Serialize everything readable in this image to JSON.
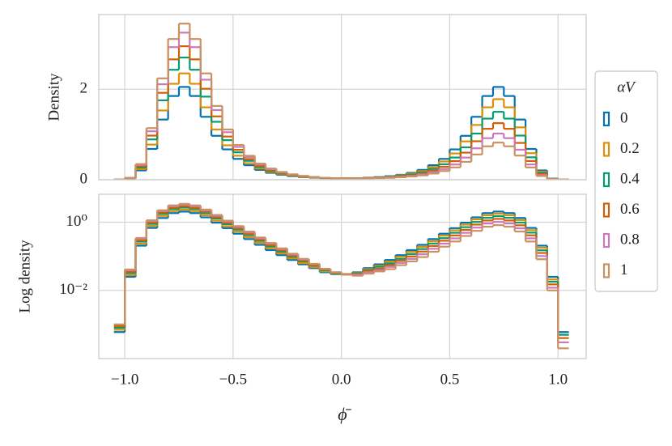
{
  "chart_data": {
    "type": "histogram",
    "xlabel": "ϕ̄",
    "bins": [
      -1.05,
      -1.0,
      -0.95,
      -0.9,
      -0.85,
      -0.8,
      -0.75,
      -0.7,
      -0.65,
      -0.6,
      -0.55,
      -0.5,
      -0.45,
      -0.4,
      -0.35,
      -0.3,
      -0.25,
      -0.2,
      -0.15,
      -0.1,
      -0.05,
      0,
      0.05,
      0.1,
      0.15,
      0.2,
      0.25,
      0.3,
      0.35,
      0.4,
      0.45,
      0.5,
      0.55,
      0.6,
      0.65,
      0.7,
      0.75,
      0.8,
      0.85,
      0.9,
      0.95,
      1.0,
      1.05
    ],
    "xlim": [
      -1.12,
      1.13
    ],
    "xticks": [
      {
        "value": -1,
        "label": "−1.0"
      },
      {
        "value": -0.5,
        "label": "−0.5"
      },
      {
        "value": 0,
        "label": "0.0"
      },
      0.5,
      {
        "value": 1,
        "label": "1.0"
      }
    ],
    "grid": true,
    "legend_title": "αV",
    "legend_position": "right",
    "panels": [
      {
        "ylabel": "Density",
        "ylim": [
          0,
          3.65
        ],
        "yticks": [
          0,
          2
        ],
        "log": false
      },
      {
        "ylabel": "Log density",
        "ylim": [
          0.0001,
          6.6
        ],
        "yticks": [
          {
            "value": 1,
            "label": "10⁰"
          },
          {
            "value": 0.01,
            "label": "10⁻²"
          }
        ],
        "log": true
      }
    ],
    "series": [
      {
        "name": "0",
        "color": "#0173b2",
        "values": [
          0.0006,
          0.025,
          0.205,
          0.68,
          1.33,
          1.85,
          2.05,
          1.85,
          1.39,
          0.97,
          0.67,
          0.46,
          0.32,
          0.217,
          0.152,
          0.108,
          0.078,
          0.058,
          0.045,
          0.034,
          0.03,
          0.03,
          0.034,
          0.045,
          0.058,
          0.078,
          0.108,
          0.152,
          0.217,
          0.32,
          0.46,
          0.67,
          0.97,
          1.39,
          1.85,
          2.05,
          1.85,
          1.33,
          0.68,
          0.205,
          0.025,
          0.0006
        ]
      },
      {
        "name": "0.2",
        "color": "#de8f05",
        "values": [
          0.0007,
          0.028,
          0.235,
          0.776,
          1.53,
          2.12,
          2.35,
          2.12,
          1.6,
          1.11,
          0.76,
          0.53,
          0.365,
          0.247,
          0.173,
          0.122,
          0.087,
          0.063,
          0.048,
          0.036,
          0.031,
          0.03,
          0.033,
          0.042,
          0.053,
          0.07,
          0.097,
          0.135,
          0.19,
          0.279,
          0.403,
          0.58,
          0.847,
          1.21,
          1.6,
          1.78,
          1.6,
          1.157,
          0.587,
          0.178,
          0.021,
          0.0005
        ]
      },
      {
        "name": "0.4",
        "color": "#029e73",
        "values": [
          0.0008,
          0.032,
          0.27,
          0.891,
          1.755,
          2.43,
          2.7,
          2.43,
          1.836,
          1.28,
          0.874,
          0.605,
          0.417,
          0.282,
          0.196,
          0.137,
          0.097,
          0.071,
          0.053,
          0.039,
          0.032,
          0.03,
          0.032,
          0.039,
          0.049,
          0.062,
          0.084,
          0.116,
          0.163,
          0.238,
          0.341,
          0.49,
          0.715,
          1.02,
          1.35,
          1.5,
          1.35,
          0.975,
          0.495,
          0.15,
          0.018,
          0.0005
        ]
      },
      {
        "name": "0.6",
        "color": "#d55e00",
        "values": [
          0.0009,
          0.035,
          0.295,
          0.974,
          1.92,
          2.66,
          2.95,
          2.66,
          2.01,
          1.4,
          0.954,
          0.66,
          0.454,
          0.306,
          0.213,
          0.149,
          0.104,
          0.075,
          0.055,
          0.041,
          0.033,
          0.03,
          0.03,
          0.037,
          0.043,
          0.055,
          0.074,
          0.099,
          0.138,
          0.201,
          0.286,
          0.41,
          0.598,
          0.85,
          1.125,
          1.25,
          1.125,
          0.813,
          0.413,
          0.125,
          0.015,
          0.0004
        ]
      },
      {
        "name": "0.8",
        "color": "#cc78bc",
        "values": [
          0.001,
          0.039,
          0.325,
          1.07,
          2.11,
          2.93,
          3.25,
          2.93,
          2.21,
          1.54,
          1.05,
          0.725,
          0.499,
          0.336,
          0.233,
          0.162,
          0.113,
          0.081,
          0.059,
          0.042,
          0.034,
          0.029,
          0.029,
          0.034,
          0.039,
          0.049,
          0.064,
          0.084,
          0.115,
          0.166,
          0.236,
          0.336,
          0.489,
          0.694,
          0.918,
          1.02,
          0.918,
          0.663,
          0.337,
          0.102,
          0.012,
          0.0003
        ]
      },
      {
        "name": "1",
        "color": "#ca9161",
        "values": [
          0.001,
          0.041,
          0.345,
          1.14,
          2.24,
          3.11,
          3.45,
          3.11,
          2.35,
          1.63,
          1.11,
          0.769,
          0.529,
          0.356,
          0.246,
          0.171,
          0.119,
          0.084,
          0.06,
          0.043,
          0.034,
          0.029,
          0.027,
          0.031,
          0.036,
          0.042,
          0.055,
          0.071,
          0.095,
          0.136,
          0.192,
          0.272,
          0.395,
          0.558,
          0.738,
          0.82,
          0.738,
          0.533,
          0.271,
          0.082,
          0.01,
          0.0002
        ]
      }
    ]
  }
}
